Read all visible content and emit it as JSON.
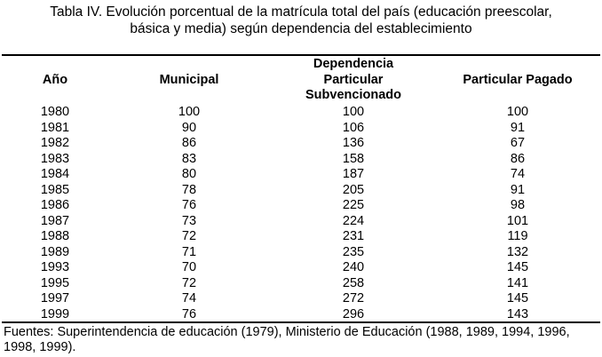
{
  "caption": {
    "line1": "Tabla IV. Evolución porcentual de la matrícula total del país (educación preescolar,",
    "line2": "básica y media) según dependencia del establecimiento"
  },
  "table": {
    "group_header": "Dependencia",
    "headers": {
      "year": "Año",
      "municipal": "Municipal",
      "subvencionado_line1": "Particular",
      "subvencionado_line2": "Subvencionado",
      "pagado": "Particular Pagado"
    },
    "rows": [
      {
        "year": "1980",
        "municipal": "100",
        "subvencionado": "100",
        "pagado": "100"
      },
      {
        "year": "1981",
        "municipal": "90",
        "subvencionado": "106",
        "pagado": "91"
      },
      {
        "year": "1982",
        "municipal": "86",
        "subvencionado": "136",
        "pagado": "67"
      },
      {
        "year": "1983",
        "municipal": "83",
        "subvencionado": "158",
        "pagado": "86"
      },
      {
        "year": "1984",
        "municipal": "80",
        "subvencionado": "187",
        "pagado": "74"
      },
      {
        "year": "1985",
        "municipal": "78",
        "subvencionado": "205",
        "pagado": "91"
      },
      {
        "year": "1986",
        "municipal": "76",
        "subvencionado": "225",
        "pagado": "98"
      },
      {
        "year": "1987",
        "municipal": "73",
        "subvencionado": "224",
        "pagado": "101"
      },
      {
        "year": "1988",
        "municipal": "72",
        "subvencionado": "231",
        "pagado": "119"
      },
      {
        "year": "1989",
        "municipal": "71",
        "subvencionado": "235",
        "pagado": "132"
      },
      {
        "year": "1993",
        "municipal": "70",
        "subvencionado": "240",
        "pagado": "145"
      },
      {
        "year": "1995",
        "municipal": "72",
        "subvencionado": "258",
        "pagado": "141"
      },
      {
        "year": "1997",
        "municipal": "74",
        "subvencionado": "272",
        "pagado": "145"
      },
      {
        "year": "1999",
        "municipal": "76",
        "subvencionado": "296",
        "pagado": "143"
      }
    ]
  },
  "footer": "Fuentes: Superintendencia de educación (1979), Ministerio de Educación (1988, 1989, 1994, 1996, 1998, 1999)."
}
